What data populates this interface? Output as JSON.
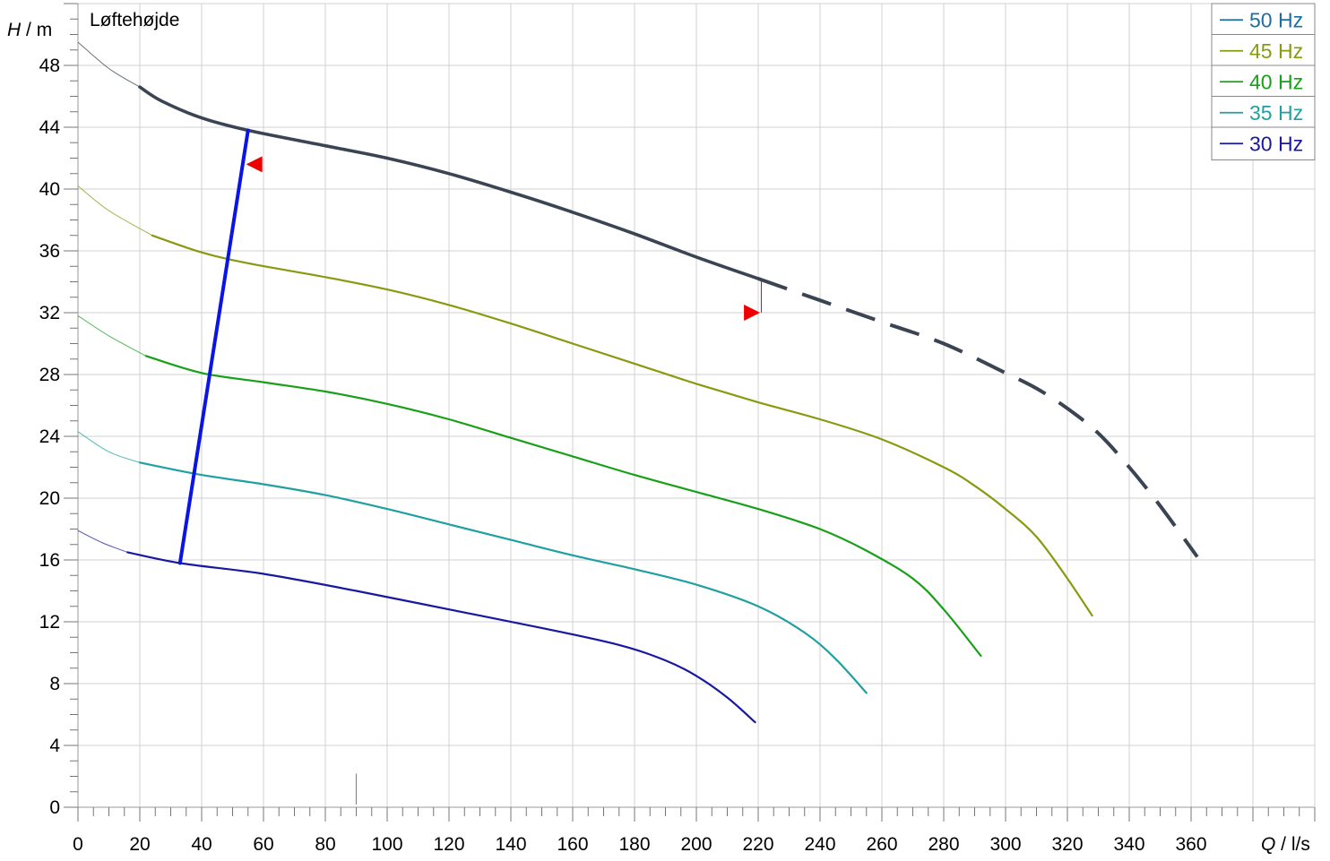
{
  "chart_data": {
    "type": "line",
    "title": "Løftehøjde",
    "y_axis": {
      "symbol": "H",
      "unit": "m",
      "range": [
        0,
        52
      ],
      "ticks": [
        0,
        4,
        8,
        12,
        16,
        20,
        24,
        28,
        32,
        36,
        40,
        44,
        48
      ]
    },
    "x_axis": {
      "symbol": "Q",
      "unit": "l/s",
      "range": [
        0,
        400
      ],
      "ticks": [
        0,
        20,
        40,
        60,
        80,
        100,
        120,
        140,
        160,
        180,
        200,
        220,
        240,
        260,
        280,
        300,
        320,
        340,
        360
      ]
    },
    "grid": true,
    "legend_position": "top-right",
    "series": [
      {
        "name": "50 Hz",
        "color": "#1a6fa0",
        "line_color": "#3a4452",
        "x": [
          0,
          10,
          20,
          27,
          40,
          55,
          80,
          100,
          120,
          140,
          160,
          180,
          200,
          220
        ],
        "y": [
          49.5,
          47.8,
          46.6,
          45.7,
          44.6,
          43.8,
          42.8,
          42.0,
          41.0,
          39.8,
          38.5,
          37.1,
          35.6,
          34.2
        ],
        "extrapolated": {
          "x": [
            220,
            240,
            260,
            280,
            300,
            310,
            320,
            330,
            340,
            350,
            362
          ],
          "y": [
            34.2,
            32.8,
            31.4,
            30.0,
            28.1,
            27.1,
            25.8,
            24.2,
            22.0,
            19.5,
            16.2
          ]
        }
      },
      {
        "name": "45 Hz",
        "color": "#8a9a10",
        "line_color": "#8a9a10",
        "x": [
          0,
          10,
          24,
          40,
          55,
          80,
          100,
          120,
          140,
          160,
          180,
          200,
          220,
          240,
          260,
          280,
          290,
          300,
          310,
          320,
          328
        ],
        "y": [
          40.2,
          38.6,
          37.0,
          35.9,
          35.2,
          34.3,
          33.5,
          32.5,
          31.3,
          30.0,
          28.7,
          27.4,
          26.2,
          25.1,
          23.8,
          22.0,
          20.8,
          19.3,
          17.5,
          14.8,
          12.4
        ]
      },
      {
        "name": "40 Hz",
        "color": "#18a018",
        "line_color": "#18a018",
        "x": [
          0,
          10,
          22,
          40,
          60,
          80,
          100,
          120,
          140,
          160,
          180,
          200,
          220,
          240,
          255,
          270,
          280,
          292
        ],
        "y": [
          31.8,
          30.5,
          29.2,
          28.1,
          27.5,
          26.9,
          26.1,
          25.1,
          23.9,
          22.7,
          21.5,
          20.4,
          19.3,
          18.0,
          16.6,
          14.8,
          12.8,
          9.8
        ]
      },
      {
        "name": "35 Hz",
        "color": "#20a0a0",
        "line_color": "#20a0a0",
        "x": [
          0,
          10,
          20,
          40,
          60,
          80,
          100,
          120,
          140,
          160,
          180,
          200,
          220,
          235,
          245,
          255
        ],
        "y": [
          24.3,
          23.0,
          22.3,
          21.5,
          20.9,
          20.2,
          19.3,
          18.3,
          17.3,
          16.3,
          15.4,
          14.4,
          13.0,
          11.3,
          9.6,
          7.4
        ]
      },
      {
        "name": "30 Hz",
        "color": "#1818a0",
        "line_color": "#1818a0",
        "x": [
          0,
          8,
          16,
          33,
          60,
          90,
          120,
          150,
          175,
          190,
          200,
          210,
          219
        ],
        "y": [
          17.9,
          17.1,
          16.5,
          15.8,
          15.1,
          14.0,
          12.8,
          11.6,
          10.5,
          9.5,
          8.5,
          7.1,
          5.5
        ]
      }
    ],
    "operating_range_line": {
      "color": "#0a14e6",
      "x": [
        33,
        55
      ],
      "y": [
        15.8,
        43.8
      ]
    },
    "markers": [
      {
        "shape": "triangle-left",
        "color": "#ee0000",
        "x": 57,
        "y": 41.6
      },
      {
        "shape": "triangle-right",
        "color": "#ee0000",
        "x": 218,
        "y": 32.0
      }
    ],
    "reference_line": {
      "color": "#ee0000",
      "x": 221,
      "y_range": [
        32.0,
        34.2
      ]
    },
    "small_tick": {
      "x": 90,
      "y_range": [
        0,
        2
      ]
    }
  }
}
